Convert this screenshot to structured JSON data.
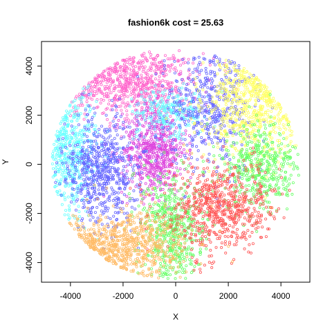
{
  "chart_data": {
    "type": "scatter",
    "title": "fashion6k  cost = 25.63",
    "xlabel": "X",
    "ylabel": "Y",
    "xlim": [
      -5100,
      5100
    ],
    "ylim": [
      -4800,
      5000
    ],
    "xticks": [
      -4000,
      -2000,
      0,
      2000,
      4000
    ],
    "yticks": [
      -4000,
      -2000,
      0,
      2000,
      4000
    ],
    "xtick_labels": [
      "-4000",
      "-2000",
      "0",
      "2000",
      "4000"
    ],
    "ytick_labels": [
      "-4000",
      "-2000",
      "0",
      "2000",
      "4000"
    ],
    "grid": false,
    "legend": false,
    "marker": "open-circle",
    "point_count_approx": 6000,
    "cluster_colors": {
      "pink": "#ff66cc",
      "magenta": "#dd44dd",
      "cyan": "#66ffff",
      "blue": "#6666ff",
      "yellow": "#ffff66",
      "green": "#66ff66",
      "red": "#ff5555",
      "orange": "#ffbb66"
    },
    "clusters": [
      {
        "color": "pink",
        "center": [
          -1500,
          3300
        ],
        "spread": [
          1200,
          700
        ],
        "n": 700
      },
      {
        "color": "magenta",
        "center": [
          -800,
          600
        ],
        "spread": [
          600,
          900
        ],
        "n": 650
      },
      {
        "color": "cyan",
        "center": [
          -4000,
          400
        ],
        "spread": [
          500,
          1200
        ],
        "n": 450
      },
      {
        "color": "cyan",
        "center": [
          -200,
          2100
        ],
        "spread": [
          700,
          500
        ],
        "n": 250
      },
      {
        "color": "blue",
        "center": [
          -2800,
          -300
        ],
        "spread": [
          700,
          1100
        ],
        "n": 650
      },
      {
        "color": "blue",
        "center": [
          1300,
          2300
        ],
        "spread": [
          800,
          1200
        ],
        "n": 500
      },
      {
        "color": "yellow",
        "center": [
          2800,
          2200
        ],
        "spread": [
          900,
          1100
        ],
        "n": 650
      },
      {
        "color": "green",
        "center": [
          3200,
          -100
        ],
        "spread": [
          700,
          900
        ],
        "n": 450
      },
      {
        "color": "green",
        "center": [
          -100,
          -2600
        ],
        "spread": [
          600,
          1100
        ],
        "n": 550
      },
      {
        "color": "red",
        "center": [
          1700,
          -1800
        ],
        "spread": [
          1000,
          900
        ],
        "n": 700
      },
      {
        "color": "orange",
        "center": [
          -1800,
          -3200
        ],
        "spread": [
          1100,
          700
        ],
        "n": 700
      }
    ]
  }
}
